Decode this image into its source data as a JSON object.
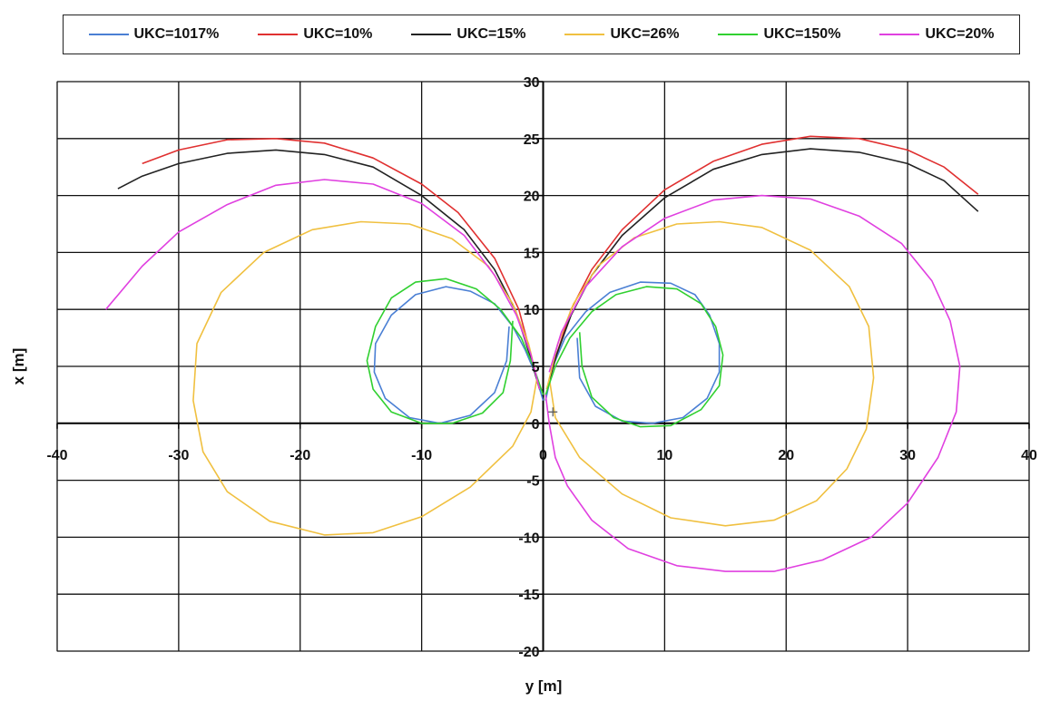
{
  "chart_data": {
    "type": "line",
    "title": "",
    "xlabel": "y [m]",
    "ylabel": "x [m]",
    "xlim": [
      -40,
      40
    ],
    "ylim": [
      -20,
      30
    ],
    "x_ticks": [
      -40,
      -30,
      -20,
      -10,
      0,
      10,
      20,
      30,
      40
    ],
    "y_ticks": [
      -20,
      -15,
      -10,
      -5,
      0,
      5,
      10,
      15,
      20,
      25,
      30
    ],
    "grid": true,
    "legend_position": "top",
    "series": [
      {
        "name": "UKC=1017%",
        "color": "#4a7fd4",
        "segments": [
          [
            [
              0,
              2
            ],
            [
              -0.7,
              4.5
            ],
            [
              -1.5,
              6.5
            ],
            [
              -2.5,
              8.5
            ],
            [
              -4,
              10.5
            ],
            [
              -6,
              11.6
            ],
            [
              -8,
              12
            ],
            [
              -10.5,
              11.3
            ],
            [
              -12.5,
              9.5
            ],
            [
              -13.8,
              7
            ],
            [
              -13.9,
              4.5
            ],
            [
              -13,
              2.2
            ],
            [
              -11,
              0.5
            ],
            [
              -8.5,
              0
            ],
            [
              -6,
              0.7
            ],
            [
              -4,
              2.7
            ],
            [
              -3,
              5.5
            ],
            [
              -2.8,
              8.5
            ]
          ],
          [
            [
              0.2,
              2
            ],
            [
              0.8,
              5
            ],
            [
              1.8,
              7.5
            ],
            [
              3.5,
              9.8
            ],
            [
              5.5,
              11.5
            ],
            [
              8,
              12.4
            ],
            [
              10.5,
              12.3
            ],
            [
              12.5,
              11.3
            ],
            [
              13.7,
              9.5
            ],
            [
              14.5,
              7
            ],
            [
              14.5,
              4.5
            ],
            [
              13.5,
              2.2
            ],
            [
              11.5,
              0.5
            ],
            [
              9,
              0
            ],
            [
              6.5,
              0.2
            ],
            [
              4.3,
              1.5
            ],
            [
              3,
              4
            ],
            [
              2.8,
              7.5
            ]
          ]
        ]
      },
      {
        "name": "UKC=10%",
        "color": "#e03030",
        "segments": [
          [
            [
              -0.3,
              3
            ],
            [
              -1,
              6
            ],
            [
              -2,
              10
            ],
            [
              -4,
              14.5
            ],
            [
              -7,
              18.5
            ],
            [
              -10,
              21
            ],
            [
              -14,
              23.3
            ],
            [
              -18,
              24.6
            ],
            [
              -22,
              25
            ],
            [
              -26,
              24.9
            ],
            [
              -30,
              24
            ],
            [
              -33,
              22.8
            ]
          ],
          [
            [
              0.3,
              3
            ],
            [
              1.1,
              6
            ],
            [
              2.3,
              10
            ],
            [
              4,
              13.5
            ],
            [
              6.5,
              17
            ],
            [
              10,
              20.5
            ],
            [
              14,
              23
            ],
            [
              18,
              24.5
            ],
            [
              22,
              25.2
            ],
            [
              26,
              25
            ],
            [
              30,
              24
            ],
            [
              33,
              22.5
            ],
            [
              35.8,
              20.1
            ]
          ]
        ]
      },
      {
        "name": "UKC=15%",
        "color": "#222222",
        "segments": [
          [
            [
              -0.3,
              3
            ],
            [
              -1.1,
              6
            ],
            [
              -2.3,
              10
            ],
            [
              -4,
              13.5
            ],
            [
              -6.5,
              17
            ],
            [
              -10,
              20
            ],
            [
              -14,
              22.5
            ],
            [
              -18,
              23.6
            ],
            [
              -22,
              24
            ],
            [
              -26,
              23.7
            ],
            [
              -30,
              22.8
            ],
            [
              -33,
              21.7
            ],
            [
              -35,
              20.6
            ]
          ],
          [
            [
              0.3,
              3
            ],
            [
              1.1,
              6
            ],
            [
              2.3,
              9.5
            ],
            [
              4,
              13
            ],
            [
              6.5,
              16.5
            ],
            [
              10,
              19.8
            ],
            [
              14,
              22.3
            ],
            [
              18,
              23.6
            ],
            [
              22,
              24.1
            ],
            [
              26,
              23.8
            ],
            [
              30,
              22.8
            ],
            [
              33,
              21.3
            ],
            [
              35.8,
              18.6
            ]
          ]
        ]
      },
      {
        "name": "UKC=26%",
        "color": "#f0c040",
        "segments": [
          [
            [
              -0.3,
              3
            ],
            [
              -1.2,
              7
            ],
            [
              -2.5,
              10.5
            ],
            [
              -4.5,
              13.8
            ],
            [
              -7.5,
              16.2
            ],
            [
              -11,
              17.5
            ],
            [
              -15,
              17.7
            ],
            [
              -19,
              17
            ],
            [
              -23,
              15
            ],
            [
              -26.5,
              11.5
            ],
            [
              -28.5,
              7
            ],
            [
              -28.8,
              2
            ],
            [
              -28,
              -2.5
            ],
            [
              -26,
              -6
            ],
            [
              -22.5,
              -8.6
            ],
            [
              -18,
              -9.8
            ],
            [
              -14,
              -9.6
            ],
            [
              -10,
              -8.2
            ],
            [
              -6,
              -5.6
            ],
            [
              -2.5,
              -2
            ],
            [
              -1,
              1
            ],
            [
              -0.5,
              4
            ]
          ],
          [
            [
              0.3,
              3
            ],
            [
              1.2,
              7
            ],
            [
              2.5,
              10.5
            ],
            [
              4.5,
              13.8
            ],
            [
              7.5,
              16.3
            ],
            [
              11,
              17.5
            ],
            [
              14.5,
              17.7
            ],
            [
              18,
              17.2
            ],
            [
              22,
              15.2
            ],
            [
              25.2,
              12
            ],
            [
              26.8,
              8.5
            ],
            [
              27.2,
              4
            ],
            [
              26.6,
              -0.5
            ],
            [
              25,
              -4
            ],
            [
              22.5,
              -6.8
            ],
            [
              19,
              -8.5
            ],
            [
              15,
              -9
            ],
            [
              10.5,
              -8.3
            ],
            [
              6.5,
              -6.2
            ],
            [
              3,
              -3
            ],
            [
              1,
              0.5
            ],
            [
              0.5,
              4
            ]
          ]
        ]
      },
      {
        "name": "UKC=150%",
        "color": "#30d030",
        "segments": [
          [
            [
              0,
              2.5
            ],
            [
              -0.8,
              5
            ],
            [
              -1.8,
              7.5
            ],
            [
              -3.5,
              10
            ],
            [
              -5.5,
              11.8
            ],
            [
              -8,
              12.7
            ],
            [
              -10.5,
              12.4
            ],
            [
              -12.5,
              11
            ],
            [
              -13.8,
              8.5
            ],
            [
              -14.5,
              5.5
            ],
            [
              -14,
              3
            ],
            [
              -12.5,
              1
            ],
            [
              -10,
              0
            ],
            [
              -7.5,
              0
            ],
            [
              -5,
              0.9
            ],
            [
              -3.3,
              2.7
            ],
            [
              -2.7,
              5.5
            ],
            [
              -2.5,
              9
            ]
          ],
          [
            [
              0.2,
              2.5
            ],
            [
              1,
              5
            ],
            [
              2.2,
              7.5
            ],
            [
              4,
              9.8
            ],
            [
              6,
              11.3
            ],
            [
              8.5,
              12
            ],
            [
              11,
              11.8
            ],
            [
              13,
              10.5
            ],
            [
              14.2,
              8.5
            ],
            [
              14.8,
              6
            ],
            [
              14.5,
              3.3
            ],
            [
              13,
              1.2
            ],
            [
              10.5,
              -0.2
            ],
            [
              8,
              -0.3
            ],
            [
              5.8,
              0.5
            ],
            [
              4,
              2.3
            ],
            [
              3.2,
              5
            ],
            [
              3,
              8
            ]
          ]
        ]
      },
      {
        "name": "UKC=20%",
        "color": "#e040e0",
        "segments": [
          [
            [
              -0.3,
              3
            ],
            [
              -1,
              6
            ],
            [
              -2.2,
              9.5
            ],
            [
              -4,
              13
            ],
            [
              -6.5,
              16.5
            ],
            [
              -10,
              19.3
            ],
            [
              -14,
              21
            ],
            [
              -18,
              21.4
            ],
            [
              -22,
              20.9
            ],
            [
              -26,
              19.2
            ],
            [
              -30,
              16.8
            ],
            [
              -33,
              13.8
            ],
            [
              -36,
              10
            ]
          ],
          [
            [
              0.2,
              2.5
            ],
            [
              0.5,
              0
            ],
            [
              1,
              -3
            ],
            [
              2,
              -5.5
            ],
            [
              4,
              -8.5
            ],
            [
              7,
              -11
            ],
            [
              11,
              -12.5
            ],
            [
              15,
              -13
            ],
            [
              19,
              -13
            ],
            [
              23,
              -12
            ],
            [
              27,
              -10
            ],
            [
              30,
              -7
            ],
            [
              32.5,
              -3
            ],
            [
              34,
              1
            ],
            [
              34.3,
              5
            ],
            [
              33.5,
              9
            ],
            [
              32,
              12.5
            ],
            [
              29.5,
              15.8
            ],
            [
              26,
              18.2
            ],
            [
              22,
              19.7
            ],
            [
              18,
              20
            ],
            [
              14,
              19.6
            ],
            [
              10,
              18
            ],
            [
              6.5,
              15.5
            ],
            [
              3.5,
              12
            ],
            [
              1.5,
              8
            ],
            [
              0.5,
              4.5
            ]
          ]
        ]
      }
    ]
  }
}
